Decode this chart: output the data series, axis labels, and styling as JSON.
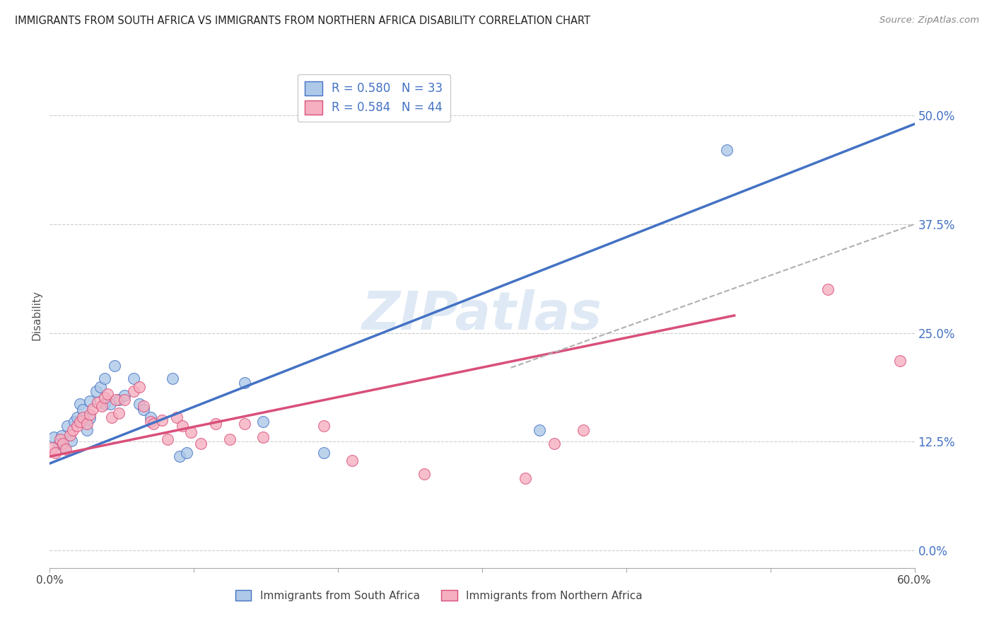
{
  "title": "IMMIGRANTS FROM SOUTH AFRICA VS IMMIGRANTS FROM NORTHERN AFRICA DISABILITY CORRELATION CHART",
  "source": "Source: ZipAtlas.com",
  "ylabel_label": "Disability",
  "legend_label1": "Immigrants from South Africa",
  "legend_label2": "Immigrants from Northern Africa",
  "r1": "0.580",
  "n1": "33",
  "r2": "0.584",
  "n2": "44",
  "color1": "#adc8e8",
  "color2": "#f5afc0",
  "line_color1": "#4472c4",
  "line_color2": "#d94f7a",
  "xmin": 0.0,
  "xmax": 0.6,
  "ymin": -0.02,
  "ymax": 0.56,
  "yticks": [
    0.0,
    0.125,
    0.25,
    0.375,
    0.5
  ],
  "ytick_labels": [
    "0.0%",
    "12.5%",
    "25.0%",
    "37.5%",
    "50.0%"
  ],
  "watermark": "ZIPatlas",
  "blue_points": [
    [
      0.003,
      0.13
    ],
    [
      0.006,
      0.122
    ],
    [
      0.008,
      0.132
    ],
    [
      0.01,
      0.118
    ],
    [
      0.012,
      0.143
    ],
    [
      0.015,
      0.126
    ],
    [
      0.017,
      0.148
    ],
    [
      0.019,
      0.153
    ],
    [
      0.021,
      0.168
    ],
    [
      0.023,
      0.162
    ],
    [
      0.026,
      0.138
    ],
    [
      0.028,
      0.152
    ],
    [
      0.028,
      0.172
    ],
    [
      0.032,
      0.183
    ],
    [
      0.035,
      0.188
    ],
    [
      0.038,
      0.198
    ],
    [
      0.038,
      0.168
    ],
    [
      0.042,
      0.168
    ],
    [
      0.045,
      0.212
    ],
    [
      0.048,
      0.173
    ],
    [
      0.052,
      0.178
    ],
    [
      0.058,
      0.198
    ],
    [
      0.062,
      0.168
    ],
    [
      0.065,
      0.162
    ],
    [
      0.07,
      0.153
    ],
    [
      0.085,
      0.198
    ],
    [
      0.09,
      0.108
    ],
    [
      0.095,
      0.112
    ],
    [
      0.135,
      0.193
    ],
    [
      0.148,
      0.148
    ],
    [
      0.19,
      0.112
    ],
    [
      0.34,
      0.138
    ],
    [
      0.47,
      0.46
    ]
  ],
  "pink_points": [
    [
      0.002,
      0.118
    ],
    [
      0.004,
      0.112
    ],
    [
      0.007,
      0.128
    ],
    [
      0.009,
      0.123
    ],
    [
      0.011,
      0.116
    ],
    [
      0.014,
      0.133
    ],
    [
      0.016,
      0.138
    ],
    [
      0.019,
      0.143
    ],
    [
      0.021,
      0.148
    ],
    [
      0.023,
      0.153
    ],
    [
      0.026,
      0.146
    ],
    [
      0.028,
      0.156
    ],
    [
      0.03,
      0.163
    ],
    [
      0.033,
      0.17
    ],
    [
      0.036,
      0.166
    ],
    [
      0.038,
      0.176
    ],
    [
      0.04,
      0.18
    ],
    [
      0.043,
      0.153
    ],
    [
      0.046,
      0.173
    ],
    [
      0.048,
      0.158
    ],
    [
      0.052,
      0.173
    ],
    [
      0.058,
      0.183
    ],
    [
      0.062,
      0.188
    ],
    [
      0.065,
      0.166
    ],
    [
      0.07,
      0.148
    ],
    [
      0.072,
      0.146
    ],
    [
      0.078,
      0.15
    ],
    [
      0.082,
      0.128
    ],
    [
      0.088,
      0.153
    ],
    [
      0.092,
      0.143
    ],
    [
      0.098,
      0.136
    ],
    [
      0.105,
      0.123
    ],
    [
      0.115,
      0.146
    ],
    [
      0.125,
      0.128
    ],
    [
      0.135,
      0.146
    ],
    [
      0.148,
      0.13
    ],
    [
      0.19,
      0.143
    ],
    [
      0.21,
      0.103
    ],
    [
      0.26,
      0.088
    ],
    [
      0.33,
      0.083
    ],
    [
      0.35,
      0.123
    ],
    [
      0.37,
      0.138
    ],
    [
      0.54,
      0.3
    ],
    [
      0.59,
      0.218
    ]
  ],
  "blue_line_x": [
    0.0,
    0.6
  ],
  "blue_line_y": [
    0.1,
    0.49
  ],
  "pink_line_x": [
    0.0,
    0.475
  ],
  "pink_line_y": [
    0.108,
    0.27
  ],
  "pink_dash_line_x": [
    0.32,
    0.6
  ],
  "pink_dash_line_y": [
    0.21,
    0.375
  ]
}
